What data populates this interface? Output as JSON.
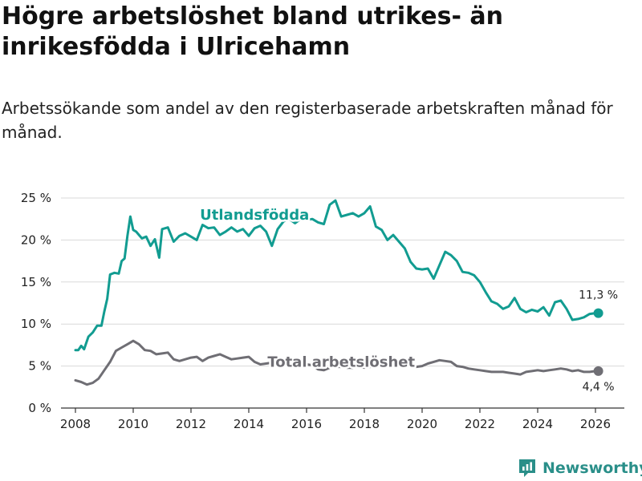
{
  "title": "Högre arbetslöshet bland utrikes- än inrikesfödda i Ulricehamn",
  "subtitle": "Arbetssökande som andel av den registerbaserade arbetskraften månad för månad.",
  "brand": {
    "name": "Newsworthy",
    "color": "#2a8f89"
  },
  "colors": {
    "utlandsfodda": "#129c91",
    "total": "#6f6e74",
    "grid": "#d9d9d9",
    "axis": "#333333"
  },
  "chart_data": {
    "type": "line",
    "title": "Högre arbetslöshet bland utrikes- än inrikesfödda i Ulricehamn",
    "subtitle": "Arbetssökande som andel av den registerbaserade arbetskraften månad för månad.",
    "xlabel": "",
    "ylabel": "",
    "xlim": [
      2007.5,
      2027.0
    ],
    "ylim": [
      0,
      25
    ],
    "xticks": [
      2008,
      2010,
      2012,
      2014,
      2016,
      2018,
      2020,
      2022,
      2024,
      2026
    ],
    "yticks": [
      0,
      5,
      10,
      15,
      20,
      25
    ],
    "ytick_labels": [
      "0 %",
      "5 %",
      "10 %",
      "15 %",
      "20 %",
      "25 %"
    ],
    "grid": true,
    "series": [
      {
        "name": "Utlandsfödda",
        "label_at": [
          2014.2,
          22.4
        ],
        "end_label": "11,3 %",
        "end_value": 11.3,
        "x": [
          2008.0,
          2008.1,
          2008.2,
          2008.3,
          2008.45,
          2008.6,
          2008.75,
          2008.9,
          2009.0,
          2009.1,
          2009.2,
          2009.35,
          2009.5,
          2009.6,
          2009.7,
          2009.8,
          2009.9,
          2010.0,
          2010.1,
          2010.2,
          2010.3,
          2010.45,
          2010.6,
          2010.75,
          2010.9,
          2011.0,
          2011.2,
          2011.4,
          2011.6,
          2011.8,
          2012.0,
          2012.2,
          2012.4,
          2012.6,
          2012.8,
          2013.0,
          2013.2,
          2013.4,
          2013.6,
          2013.8,
          2014.0,
          2014.2,
          2014.4,
          2014.6,
          2014.8,
          2015.0,
          2015.2,
          2015.4,
          2015.6,
          2015.8,
          2016.0,
          2016.2,
          2016.4,
          2016.6,
          2016.8,
          2017.0,
          2017.2,
          2017.4,
          2017.6,
          2017.8,
          2018.0,
          2018.2,
          2018.4,
          2018.6,
          2018.8,
          2019.0,
          2019.2,
          2019.4,
          2019.6,
          2019.8,
          2020.0,
          2020.2,
          2020.4,
          2020.6,
          2020.8,
          2021.0,
          2021.2,
          2021.4,
          2021.6,
          2021.8,
          2022.0,
          2022.2,
          2022.4,
          2022.6,
          2022.8,
          2023.0,
          2023.2,
          2023.4,
          2023.6,
          2023.8,
          2024.0,
          2024.2,
          2024.4,
          2024.6,
          2024.8,
          2025.0,
          2025.2,
          2025.4,
          2025.6,
          2025.8,
          2026.0,
          2026.1
        ],
        "values": [
          6.9,
          6.9,
          7.4,
          7.0,
          8.5,
          9.0,
          9.8,
          9.8,
          11.5,
          13.0,
          15.9,
          16.1,
          16.0,
          17.5,
          17.8,
          20.5,
          22.8,
          21.2,
          21.0,
          20.6,
          20.2,
          20.4,
          19.3,
          20.1,
          17.9,
          21.3,
          21.5,
          19.8,
          20.5,
          20.8,
          20.4,
          20.0,
          21.8,
          21.4,
          21.5,
          20.6,
          21.0,
          21.5,
          21.0,
          21.3,
          20.5,
          21.4,
          21.7,
          21.0,
          19.3,
          21.3,
          22.2,
          22.5,
          22.0,
          22.5,
          22.4,
          22.5,
          22.1,
          21.9,
          24.2,
          24.7,
          22.8,
          23.0,
          23.2,
          22.8,
          23.2,
          24.0,
          21.6,
          21.2,
          20.0,
          20.6,
          19.8,
          19.0,
          17.4,
          16.6,
          16.5,
          16.6,
          15.4,
          17.0,
          18.6,
          18.2,
          17.5,
          16.2,
          16.1,
          15.8,
          15.0,
          13.8,
          12.7,
          12.4,
          11.8,
          12.1,
          13.1,
          11.8,
          11.4,
          11.7,
          11.5,
          12.0,
          11.0,
          12.6,
          12.8,
          11.8,
          10.5,
          10.6,
          10.8,
          11.2,
          11.3,
          11.3
        ]
      },
      {
        "name": "Total arbetslöshet",
        "label_at": [
          2017.2,
          4.9
        ],
        "end_label": "4,4 %",
        "end_value": 4.4,
        "x": [
          2008.0,
          2008.2,
          2008.4,
          2008.6,
          2008.8,
          2009.0,
          2009.2,
          2009.4,
          2009.6,
          2009.8,
          2010.0,
          2010.2,
          2010.4,
          2010.6,
          2010.8,
          2011.0,
          2011.2,
          2011.4,
          2011.6,
          2011.8,
          2012.0,
          2012.2,
          2012.4,
          2012.6,
          2012.8,
          2013.0,
          2013.2,
          2013.4,
          2013.6,
          2013.8,
          2014.0,
          2014.2,
          2014.4,
          2014.6,
          2014.8,
          2015.0,
          2015.2,
          2015.4,
          2015.6,
          2015.8,
          2016.0,
          2016.2,
          2016.4,
          2016.6,
          2016.8,
          2017.0,
          2017.2,
          2017.4,
          2017.6,
          2017.8,
          2018.0,
          2018.2,
          2018.4,
          2018.6,
          2018.8,
          2019.0,
          2019.2,
          2019.4,
          2019.6,
          2019.8,
          2020.0,
          2020.2,
          2020.4,
          2020.6,
          2020.8,
          2021.0,
          2021.2,
          2021.4,
          2021.6,
          2021.8,
          2022.0,
          2022.2,
          2022.4,
          2022.6,
          2022.8,
          2023.0,
          2023.2,
          2023.4,
          2023.6,
          2023.8,
          2024.0,
          2024.2,
          2024.4,
          2024.6,
          2024.8,
          2025.0,
          2025.2,
          2025.4,
          2025.6,
          2025.8,
          2026.0,
          2026.1
        ],
        "values": [
          3.3,
          3.1,
          2.8,
          3.0,
          3.5,
          4.5,
          5.5,
          6.8,
          7.2,
          7.6,
          8.0,
          7.6,
          6.9,
          6.8,
          6.4,
          6.5,
          6.6,
          5.8,
          5.6,
          5.8,
          6.0,
          6.1,
          5.6,
          6.0,
          6.2,
          6.4,
          6.1,
          5.8,
          5.9,
          6.0,
          6.1,
          5.5,
          5.2,
          5.3,
          5.4,
          5.7,
          5.6,
          5.2,
          5.1,
          5.0,
          5.2,
          5.1,
          4.6,
          4.5,
          4.8,
          4.9,
          4.9,
          4.8,
          4.8,
          4.9,
          4.8,
          4.9,
          5.0,
          5.0,
          5.1,
          5.2,
          5.3,
          5.2,
          5.0,
          4.9,
          5.0,
          5.3,
          5.5,
          5.7,
          5.6,
          5.5,
          5.0,
          4.9,
          4.7,
          4.6,
          4.5,
          4.4,
          4.3,
          4.3,
          4.3,
          4.2,
          4.1,
          4.0,
          4.3,
          4.4,
          4.5,
          4.4,
          4.5,
          4.6,
          4.7,
          4.6,
          4.4,
          4.5,
          4.3,
          4.3,
          4.4,
          4.4
        ]
      }
    ]
  }
}
